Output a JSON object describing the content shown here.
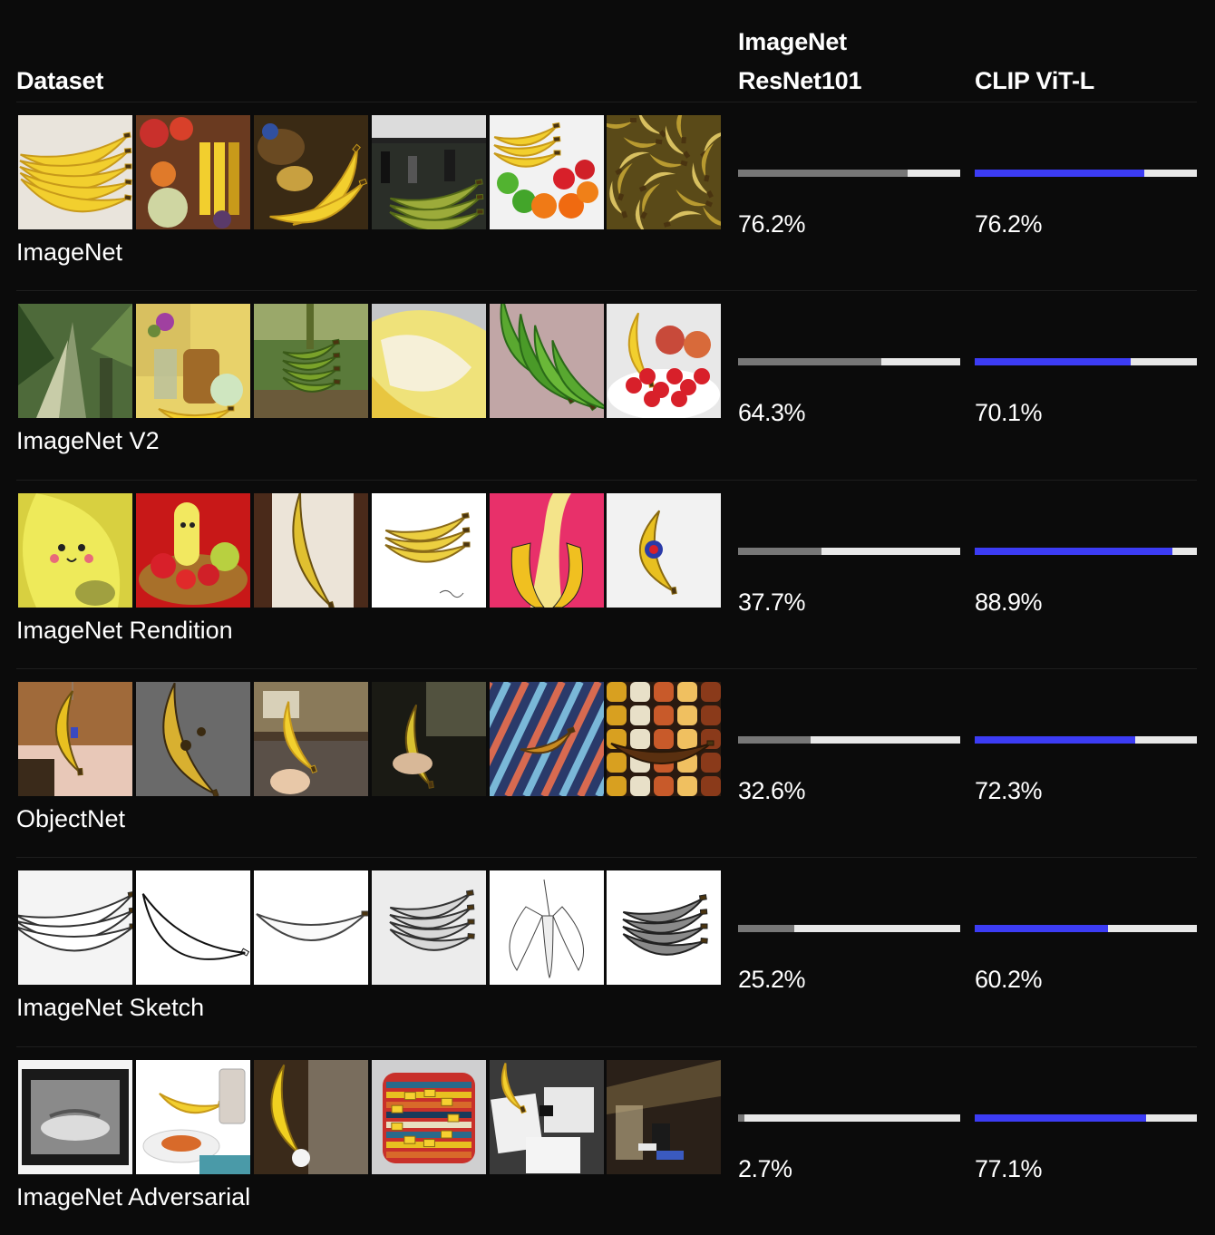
{
  "header": {
    "dataset_label": "Dataset",
    "resnet_label": "ImageNet ResNet101",
    "clip_label": "CLIP ViT-L"
  },
  "colors": {
    "background": "#0b0b0b",
    "resnet_bar": "#777777",
    "clip_bar": "#3c3cf5",
    "bar_track": "#e8e8e8"
  },
  "chart_data": {
    "type": "bar",
    "categories": [
      "ImageNet",
      "ImageNet V2",
      "ImageNet Rendition",
      "ObjectNet",
      "ImageNet Sketch",
      "ImageNet Adversarial"
    ],
    "series": [
      {
        "name": "ImageNet ResNet101",
        "values": [
          76.2,
          64.3,
          37.7,
          32.6,
          25.2,
          2.7
        ]
      },
      {
        "name": "CLIP ViT-L",
        "values": [
          76.2,
          70.1,
          88.9,
          72.3,
          60.2,
          77.1
        ]
      }
    ],
    "value_labels": {
      "resnet": [
        "76.2%",
        "64.3%",
        "37.7%",
        "32.6%",
        "25.2%",
        "2.7%"
      ],
      "clip": [
        "76.2%",
        "70.1%",
        "88.9%",
        "72.3%",
        "60.2%",
        "77.1%"
      ]
    },
    "ylim": [
      0,
      100
    ],
    "unit": "%"
  },
  "thumbnail_styles": [
    [
      "photo-bunch",
      "fruit-stand",
      "bananas-potatoes",
      "market",
      "fruit-bowl",
      "banana-pile"
    ],
    [
      "banana-tree",
      "vase-jar",
      "green-bunch",
      "peeled-closeup",
      "green-bananas",
      "fruit-basket"
    ],
    [
      "cartoon-face",
      "toy-fruits",
      "painted-banana",
      "drawn-bunch",
      "pop-art",
      "sticker-banana"
    ],
    [
      "hanging-banana",
      "ripe-banana",
      "hand-kitchen",
      "hand-dark",
      "striped-mat",
      "mosaic-banana"
    ],
    [
      "sketch-bunch",
      "line-banana",
      "outline-banana",
      "pencil-bunch",
      "peeled-sketch",
      "grey-bunch"
    ],
    [
      "film-bowl",
      "drink-plate",
      "held-banana",
      "striped-plate",
      "papers-desk",
      "patio-sign"
    ]
  ]
}
